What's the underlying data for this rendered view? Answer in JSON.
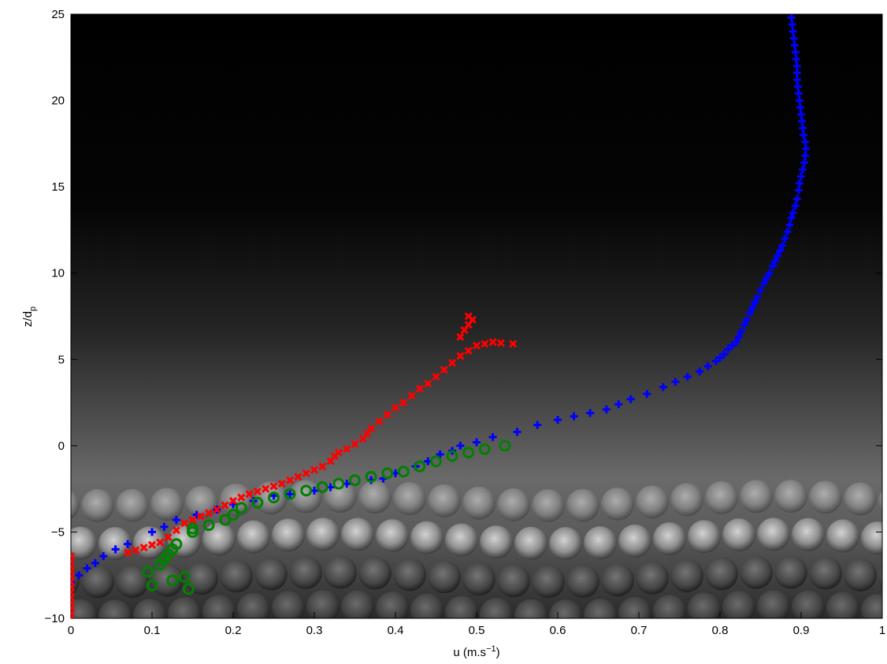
{
  "chart_data": {
    "type": "scatter",
    "title": "",
    "xlabel": "u (m.s",
    "xlabel_sup": "−1",
    "xlabel_close": ")",
    "ylabel": "z/d",
    "ylabel_sub": "p",
    "xlim": [
      0,
      1
    ],
    "ylim": [
      -10,
      25
    ],
    "xticks": [
      "0",
      "0.1",
      "0.2",
      "0.3",
      "0.4",
      "0.5",
      "0.6",
      "0.7",
      "0.8",
      "0.9",
      "1"
    ],
    "yticks": [
      "−10",
      "−5",
      "0",
      "5",
      "10",
      "15",
      "20",
      "25"
    ],
    "grid": false,
    "legend": "none",
    "background": "grayscale photograph of a packed bed of spheres under a dark flow region",
    "series": [
      {
        "marker": "plus",
        "color": "#0000ff",
        "points": [
          [
            0.0,
            -7.9
          ],
          [
            0.01,
            -7.5
          ],
          [
            0.02,
            -7.1
          ],
          [
            0.03,
            -6.8
          ],
          [
            0.04,
            -6.4
          ],
          [
            0.055,
            -6.0
          ],
          [
            0.07,
            -5.7
          ],
          [
            0.1,
            -5.0
          ],
          [
            0.115,
            -4.7
          ],
          [
            0.13,
            -4.3
          ],
          [
            0.155,
            -4.0
          ],
          [
            0.18,
            -3.7
          ],
          [
            0.2,
            -3.4
          ],
          [
            0.225,
            -3.2
          ],
          [
            0.25,
            -2.9
          ],
          [
            0.27,
            -2.8
          ],
          [
            0.3,
            -2.6
          ],
          [
            0.32,
            -2.4
          ],
          [
            0.34,
            -2.2
          ],
          [
            0.37,
            -2.0
          ],
          [
            0.385,
            -1.9
          ],
          [
            0.4,
            -1.6
          ],
          [
            0.425,
            -1.2
          ],
          [
            0.44,
            -0.9
          ],
          [
            0.455,
            -0.5
          ],
          [
            0.47,
            -0.3
          ],
          [
            0.48,
            0.0
          ],
          [
            0.5,
            0.2
          ],
          [
            0.52,
            0.5
          ],
          [
            0.55,
            0.8
          ],
          [
            0.575,
            1.2
          ],
          [
            0.6,
            1.5
          ],
          [
            0.62,
            1.7
          ],
          [
            0.64,
            1.9
          ],
          [
            0.66,
            2.1
          ],
          [
            0.675,
            2.4
          ],
          [
            0.69,
            2.7
          ],
          [
            0.71,
            3.0
          ],
          [
            0.73,
            3.4
          ],
          [
            0.745,
            3.7
          ],
          [
            0.76,
            4.0
          ],
          [
            0.775,
            4.3
          ],
          [
            0.785,
            4.6
          ],
          [
            0.795,
            4.9
          ],
          [
            0.8,
            5.1
          ],
          [
            0.805,
            5.3
          ],
          [
            0.81,
            5.6
          ],
          [
            0.815,
            5.8
          ],
          [
            0.82,
            6.0
          ],
          [
            0.823,
            6.3
          ],
          [
            0.826,
            6.6
          ],
          [
            0.83,
            7.0
          ],
          [
            0.833,
            7.3
          ],
          [
            0.837,
            7.7
          ],
          [
            0.84,
            8.0
          ],
          [
            0.843,
            8.3
          ],
          [
            0.846,
            8.6
          ],
          [
            0.85,
            9.0
          ],
          [
            0.854,
            9.4
          ],
          [
            0.857,
            9.7
          ],
          [
            0.861,
            10.0
          ],
          [
            0.865,
            10.4
          ],
          [
            0.868,
            10.7
          ],
          [
            0.871,
            11.0
          ],
          [
            0.874,
            11.3
          ],
          [
            0.877,
            11.6
          ],
          [
            0.88,
            12.0
          ],
          [
            0.883,
            12.4
          ],
          [
            0.886,
            12.8
          ],
          [
            0.888,
            13.2
          ],
          [
            0.89,
            13.5
          ],
          [
            0.893,
            13.9
          ],
          [
            0.895,
            14.3
          ],
          [
            0.897,
            14.8
          ],
          [
            0.898,
            15.2
          ],
          [
            0.9,
            15.6
          ],
          [
            0.902,
            16.0
          ],
          [
            0.904,
            16.4
          ],
          [
            0.905,
            16.8
          ],
          [
            0.906,
            17.2
          ],
          [
            0.905,
            17.6
          ],
          [
            0.903,
            18.0
          ],
          [
            0.902,
            18.4
          ],
          [
            0.901,
            18.8
          ],
          [
            0.9,
            19.2
          ],
          [
            0.899,
            19.6
          ],
          [
            0.898,
            20.0
          ],
          [
            0.897,
            20.4
          ],
          [
            0.896,
            20.8
          ],
          [
            0.895,
            21.2
          ],
          [
            0.895,
            21.6
          ],
          [
            0.895,
            22.0
          ],
          [
            0.894,
            22.4
          ],
          [
            0.893,
            22.8
          ],
          [
            0.892,
            23.2
          ],
          [
            0.891,
            23.6
          ],
          [
            0.89,
            24.0
          ],
          [
            0.889,
            24.4
          ],
          [
            0.888,
            24.8
          ]
        ]
      },
      {
        "marker": "x",
        "color": "#ff0000",
        "points": [
          [
            0.0,
            -10.0
          ],
          [
            0.0,
            -9.7
          ],
          [
            0.0,
            -9.4
          ],
          [
            0.0,
            -9.1
          ],
          [
            0.0,
            -8.8
          ],
          [
            0.0,
            -8.5
          ],
          [
            0.0,
            -8.2
          ],
          [
            0.0,
            -7.9
          ],
          [
            0.0,
            -7.6
          ],
          [
            0.0,
            -7.3
          ],
          [
            0.0,
            -7.0
          ],
          [
            0.0,
            -6.7
          ],
          [
            0.0,
            -6.4
          ],
          [
            0.07,
            -6.2
          ],
          [
            0.08,
            -6.05
          ],
          [
            0.09,
            -5.9
          ],
          [
            0.1,
            -5.75
          ],
          [
            0.11,
            -5.6
          ],
          [
            0.12,
            -5.3
          ],
          [
            0.13,
            -4.9
          ],
          [
            0.14,
            -4.5
          ],
          [
            0.15,
            -4.3
          ],
          [
            0.16,
            -4.1
          ],
          [
            0.17,
            -3.9
          ],
          [
            0.18,
            -3.7
          ],
          [
            0.19,
            -3.45
          ],
          [
            0.2,
            -3.2
          ],
          [
            0.21,
            -3.0
          ],
          [
            0.22,
            -2.8
          ],
          [
            0.23,
            -2.65
          ],
          [
            0.24,
            -2.5
          ],
          [
            0.25,
            -2.35
          ],
          [
            0.26,
            -2.2
          ],
          [
            0.27,
            -2.0
          ],
          [
            0.28,
            -1.8
          ],
          [
            0.29,
            -1.6
          ],
          [
            0.3,
            -1.4
          ],
          [
            0.31,
            -1.2
          ],
          [
            0.32,
            -0.9
          ],
          [
            0.325,
            -0.6
          ],
          [
            0.33,
            -0.4
          ],
          [
            0.34,
            -0.2
          ],
          [
            0.35,
            0.1
          ],
          [
            0.36,
            0.4
          ],
          [
            0.365,
            0.7
          ],
          [
            0.37,
            1.0
          ],
          [
            0.38,
            1.4
          ],
          [
            0.39,
            1.8
          ],
          [
            0.4,
            2.2
          ],
          [
            0.41,
            2.5
          ],
          [
            0.42,
            2.9
          ],
          [
            0.43,
            3.3
          ],
          [
            0.44,
            3.6
          ],
          [
            0.45,
            4.0
          ],
          [
            0.46,
            4.4
          ],
          [
            0.47,
            4.8
          ],
          [
            0.48,
            5.2
          ],
          [
            0.49,
            5.5
          ],
          [
            0.5,
            5.8
          ],
          [
            0.51,
            5.9
          ],
          [
            0.52,
            6.0
          ],
          [
            0.53,
            5.95
          ],
          [
            0.545,
            5.9
          ],
          [
            0.48,
            6.3
          ],
          [
            0.485,
            6.7
          ],
          [
            0.49,
            7.0
          ],
          [
            0.495,
            7.3
          ],
          [
            0.49,
            7.5
          ]
        ]
      },
      {
        "marker": "circle",
        "color": "#008000",
        "points": [
          [
            0.1,
            -8.1
          ],
          [
            0.095,
            -7.3
          ],
          [
            0.11,
            -6.9
          ],
          [
            0.115,
            -6.6
          ],
          [
            0.12,
            -6.3
          ],
          [
            0.125,
            -6.0
          ],
          [
            0.13,
            -5.7
          ],
          [
            0.125,
            -7.8
          ],
          [
            0.14,
            -7.6
          ],
          [
            0.145,
            -8.3
          ],
          [
            0.15,
            -5.0
          ],
          [
            0.15,
            -4.8
          ],
          [
            0.17,
            -4.6
          ],
          [
            0.19,
            -4.3
          ],
          [
            0.2,
            -4.0
          ],
          [
            0.21,
            -3.6
          ],
          [
            0.23,
            -3.3
          ],
          [
            0.25,
            -3.0
          ],
          [
            0.27,
            -2.8
          ],
          [
            0.29,
            -2.6
          ],
          [
            0.31,
            -2.4
          ],
          [
            0.33,
            -2.2
          ],
          [
            0.35,
            -2.0
          ],
          [
            0.37,
            -1.8
          ],
          [
            0.39,
            -1.6
          ],
          [
            0.41,
            -1.5
          ],
          [
            0.43,
            -1.2
          ],
          [
            0.45,
            -0.9
          ],
          [
            0.47,
            -0.6
          ],
          [
            0.49,
            -0.4
          ],
          [
            0.51,
            -0.2
          ],
          [
            0.535,
            0.0
          ]
        ]
      }
    ]
  }
}
